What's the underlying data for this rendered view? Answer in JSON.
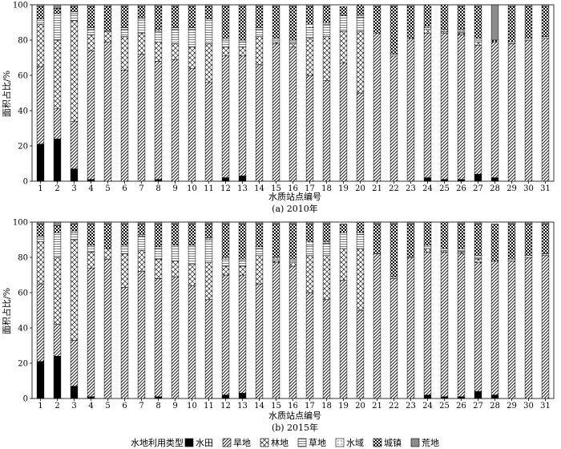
{
  "chart_data": [
    {
      "type": "bar",
      "stacked": true,
      "caption": "(a) 2010年",
      "xlabel": "水质站点编号",
      "ylabel": "面积占比/%",
      "ylim": [
        0,
        100
      ],
      "yticks": [
        0,
        20,
        40,
        60,
        80,
        100
      ],
      "categories": [
        "1",
        "2",
        "3",
        "4",
        "5",
        "6",
        "7",
        "8",
        "9",
        "10",
        "11",
        "12",
        "13",
        "14",
        "15",
        "16",
        "17",
        "18",
        "19",
        "20",
        "21",
        "22",
        "23",
        "24",
        "25",
        "26",
        "27",
        "28",
        "29",
        "30",
        "31"
      ],
      "series": [
        {
          "name": "水田",
          "values": [
            21,
            24,
            7,
            1,
            0,
            0,
            0,
            1,
            0,
            0,
            0,
            2,
            3,
            0,
            0,
            0,
            0,
            0,
            0,
            0,
            0,
            0,
            0,
            2,
            1,
            1,
            4,
            2,
            0,
            0,
            0
          ]
        },
        {
          "name": "旱地",
          "values": [
            44,
            17,
            27,
            73,
            79,
            63,
            72,
            67,
            69,
            64,
            56,
            69,
            68,
            66,
            78,
            76,
            60,
            57,
            67,
            50,
            84,
            71,
            81,
            82,
            83,
            82,
            73,
            77,
            78,
            80,
            81
          ]
        },
        {
          "name": "林地",
          "values": [
            24,
            39,
            57,
            9,
            6,
            19,
            12,
            11,
            9,
            12,
            22,
            5,
            5,
            16,
            1,
            2,
            21,
            25,
            18,
            35,
            0,
            0,
            0,
            2,
            1,
            1,
            2,
            0,
            0,
            0,
            0
          ]
        },
        {
          "name": "草地",
          "values": [
            2,
            15,
            4,
            3,
            0,
            4,
            8,
            6,
            8,
            10,
            13,
            4,
            3,
            4,
            1,
            1,
            6,
            7,
            9,
            8,
            0,
            0,
            0,
            1,
            0,
            1,
            1,
            0,
            0,
            0,
            0
          ]
        },
        {
          "name": "水域",
          "values": [
            1,
            0,
            1,
            1,
            0,
            1,
            1,
            1,
            1,
            1,
            1,
            1,
            1,
            1,
            1,
            1,
            2,
            1,
            0,
            1,
            0,
            1,
            0,
            1,
            1,
            1,
            1,
            0,
            1,
            1,
            1
          ]
        },
        {
          "name": "城镇",
          "values": [
            7,
            3,
            3,
            12,
            14,
            12,
            6,
            13,
            12,
            12,
            7,
            18,
            19,
            12,
            18,
            19,
            10,
            9,
            5,
            6,
            15,
            27,
            18,
            12,
            14,
            13,
            18,
            1,
            20,
            18,
            17
          ]
        },
        {
          "name": "荒地",
          "values": [
            1,
            2,
            1,
            1,
            1,
            1,
            1,
            1,
            1,
            1,
            1,
            1,
            1,
            1,
            1,
            1,
            1,
            1,
            0,
            0,
            1,
            1,
            1,
            0,
            0,
            1,
            1,
            20,
            1,
            1,
            1
          ]
        }
      ]
    },
    {
      "type": "bar",
      "stacked": true,
      "caption": "(b) 2015年",
      "xlabel": "水质站点编号",
      "ylabel": "面积占比/%",
      "ylim": [
        0,
        100
      ],
      "yticks": [
        0,
        20,
        40,
        60,
        80,
        100
      ],
      "categories": [
        "1",
        "2",
        "3",
        "4",
        "5",
        "6",
        "7",
        "8",
        "9",
        "10",
        "11",
        "12",
        "13",
        "14",
        "15",
        "16",
        "17",
        "18",
        "19",
        "20",
        "21",
        "22",
        "23",
        "24",
        "25",
        "26",
        "27",
        "28",
        "29",
        "30",
        "31"
      ],
      "series": [
        {
          "name": "水田",
          "values": [
            21,
            24,
            7,
            1,
            0,
            0,
            0,
            1,
            0,
            0,
            0,
            2,
            3,
            0,
            0,
            0,
            0,
            0,
            0,
            0,
            0,
            0,
            0,
            2,
            1,
            1,
            4,
            2,
            0,
            0,
            0
          ]
        },
        {
          "name": "旱地",
          "values": [
            44,
            18,
            26,
            73,
            79,
            63,
            72,
            67,
            69,
            64,
            56,
            68,
            67,
            65,
            77,
            75,
            60,
            56,
            67,
            50,
            82,
            68,
            80,
            81,
            82,
            81,
            73,
            76,
            78,
            80,
            81
          ]
        },
        {
          "name": "林地",
          "values": [
            24,
            38,
            57,
            9,
            6,
            19,
            12,
            11,
            9,
            12,
            21,
            5,
            5,
            16,
            1,
            2,
            21,
            25,
            18,
            35,
            0,
            0,
            0,
            2,
            1,
            1,
            2,
            0,
            0,
            0,
            0
          ]
        },
        {
          "name": "草地",
          "values": [
            2,
            14,
            4,
            3,
            0,
            4,
            8,
            6,
            8,
            10,
            13,
            4,
            3,
            4,
            1,
            1,
            6,
            7,
            9,
            8,
            0,
            0,
            0,
            1,
            0,
            1,
            1,
            0,
            0,
            0,
            0
          ]
        },
        {
          "name": "水域",
          "values": [
            1,
            0,
            1,
            1,
            0,
            1,
            1,
            1,
            1,
            1,
            1,
            1,
            1,
            1,
            1,
            1,
            2,
            1,
            0,
            1,
            0,
            1,
            0,
            1,
            1,
            1,
            1,
            0,
            1,
            1,
            1
          ]
        },
        {
          "name": "城镇",
          "values": [
            7,
            4,
            4,
            12,
            14,
            12,
            6,
            13,
            12,
            12,
            8,
            19,
            20,
            13,
            19,
            20,
            10,
            10,
            5,
            6,
            17,
            30,
            19,
            13,
            15,
            14,
            18,
            21,
            20,
            18,
            17
          ]
        },
        {
          "name": "荒地",
          "values": [
            1,
            2,
            1,
            1,
            1,
            1,
            1,
            1,
            1,
            1,
            1,
            1,
            1,
            1,
            1,
            1,
            1,
            1,
            0,
            0,
            1,
            1,
            1,
            0,
            0,
            1,
            1,
            0,
            1,
            1,
            1
          ]
        }
      ]
    }
  ],
  "legend": {
    "title": "水地利用类型",
    "items": [
      "水田",
      "旱地",
      "林地",
      "草地",
      "水域",
      "城镇",
      "荒地"
    ]
  },
  "colors": {
    "ink": "#000000",
    "paper": "#ffffff",
    "barren_fill": "#8c8c8c"
  },
  "patterns": [
    "solid-black",
    "diagonal-hatch",
    "diamond-crosshatch",
    "horizontal-lines",
    "dotted",
    "checkerboard",
    "solid-gray"
  ]
}
